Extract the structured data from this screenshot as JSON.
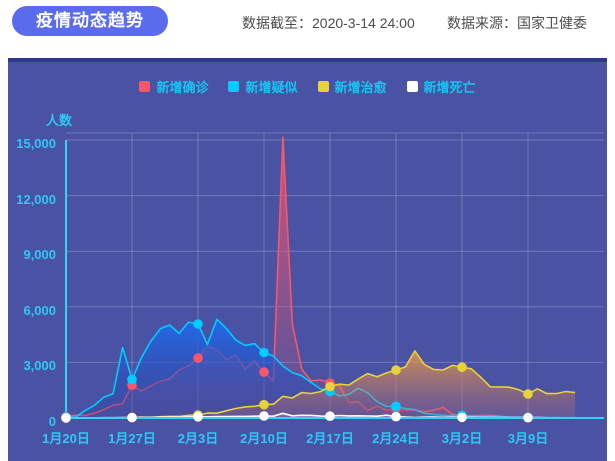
{
  "header": {
    "title": "疫情动态趋势",
    "data_cutoff": "数据截至：2020-3-14 24:00",
    "data_source": "数据来源：国家卫健委"
  },
  "chart": {
    "y_axis_title": "人数",
    "y_ticks": [
      "15,000",
      "12,000",
      "9,000",
      "6,000",
      "3,000",
      "0"
    ]
  },
  "colors": {
    "pill_accent": "#5a6bee",
    "panel_background": "#4952a3",
    "panel_top_border": "#2c3890",
    "axis_cyan": "#2ed5f7",
    "tick_text_cyan": "#2fc8f5",
    "confirmed_red": "#f8566a",
    "suspected_cyan": "#00ccff",
    "cured_yellow": "#e8d23a",
    "deaths_white": "#ffffff"
  },
  "chart_data": {
    "type": "line",
    "title": "疫情动态趋势",
    "xlabel": "",
    "ylabel": "人数",
    "ylim": [
      0,
      15000
    ],
    "grid": true,
    "legend_position": "top",
    "x_tick_labels": [
      "1月20日",
      "1月27日",
      "2月3日",
      "2月10日",
      "2月17日",
      "2月24日",
      "3月2日",
      "3月9日"
    ],
    "x_tick_indices": [
      0,
      7,
      14,
      21,
      28,
      35,
      42,
      49
    ],
    "dates": [
      "1月20日",
      "1月21日",
      "1月22日",
      "1月23日",
      "1月24日",
      "1月25日",
      "1月26日",
      "1月27日",
      "1月28日",
      "1月29日",
      "1月30日",
      "1月31日",
      "2月1日",
      "2月2日",
      "2月3日",
      "2月4日",
      "2月5日",
      "2月6日",
      "2月7日",
      "2月8日",
      "2月9日",
      "2月10日",
      "2月11日",
      "2月12日",
      "2月13日",
      "2月14日",
      "2月15日",
      "2月16日",
      "2月17日",
      "2月18日",
      "2月19日",
      "2月20日",
      "2月21日",
      "2月22日",
      "2月23日",
      "2月24日",
      "2月25日",
      "2月26日",
      "2月27日",
      "2月28日",
      "2月29日",
      "3月1日",
      "3月2日",
      "3月3日",
      "3月4日",
      "3月5日",
      "3月6日",
      "3月7日",
      "3月8日",
      "3月9日",
      "3月10日",
      "3月11日",
      "3月12日",
      "3月13日",
      "3月14日"
    ],
    "series": [
      {
        "name": "新增确诊",
        "color": "#f8566a",
        "values": [
          77,
          149,
          131,
          259,
          444,
          688,
          769,
          1771,
          1459,
          1737,
          1982,
          2102,
          2590,
          2829,
          3235,
          3887,
          3694,
          3143,
          3399,
          2656,
          3062,
          2478,
          2015,
          15152,
          5090,
          2641,
          2009,
          2048,
          1886,
          1749,
          820,
          889,
          397,
          648,
          409,
          508,
          406,
          433,
          327,
          427,
          573,
          202,
          125,
          119,
          139,
          143,
          99,
          44,
          40,
          19,
          24,
          15,
          8,
          11,
          20
        ]
      },
      {
        "name": "新增疑似",
        "color": "#00ccff",
        "values": [
          54,
          37,
          393,
          680,
          1118,
          1309,
          3806,
          2077,
          3248,
          4148,
          4812,
          5019,
          4562,
          5173,
          5072,
          3971,
          5328,
          4833,
          4214,
          3916,
          4008,
          3536,
          3342,
          2807,
          2450,
          2277,
          1918,
          1563,
          1432,
          1185,
          1277,
          1614,
          1361,
          882,
          620,
          630,
          508,
          452,
          248,
          196,
          141,
          129,
          143,
          102,
          99,
          101,
          88,
          56,
          42,
          31,
          33,
          24,
          20,
          16,
          15
        ]
      },
      {
        "name": "新增治愈",
        "color": "#e8d23a",
        "values": [
          0,
          0,
          5,
          6,
          3,
          11,
          13,
          21,
          47,
          21,
          72,
          85,
          85,
          147,
          157,
          262,
          261,
          387,
          510,
          600,
          632,
          716,
          744,
          1171,
          1081,
          1373,
          1323,
          1425,
          1701,
          1824,
          1779,
          2109,
          2393,
          2230,
          2432,
          2589,
          2750,
          3622,
          2885,
          2623,
          2590,
          2837,
          2742,
          2652,
          2189,
          1681,
          1678,
          1661,
          1535,
          1297,
          1578,
          1318,
          1318,
          1430,
          1370
        ]
      },
      {
        "name": "新增死亡",
        "color": "#ffffff",
        "values": [
          3,
          8,
          8,
          8,
          16,
          15,
          24,
          26,
          26,
          38,
          43,
          46,
          45,
          57,
          64,
          65,
          73,
          73,
          86,
          89,
          97,
          108,
          97,
          254,
          121,
          143,
          142,
          105,
          98,
          136,
          114,
          118,
          109,
          97,
          150,
          71,
          52,
          29,
          44,
          47,
          35,
          42,
          31,
          38,
          31,
          30,
          28,
          27,
          22,
          17,
          22,
          11,
          7,
          13,
          10
        ]
      }
    ]
  }
}
